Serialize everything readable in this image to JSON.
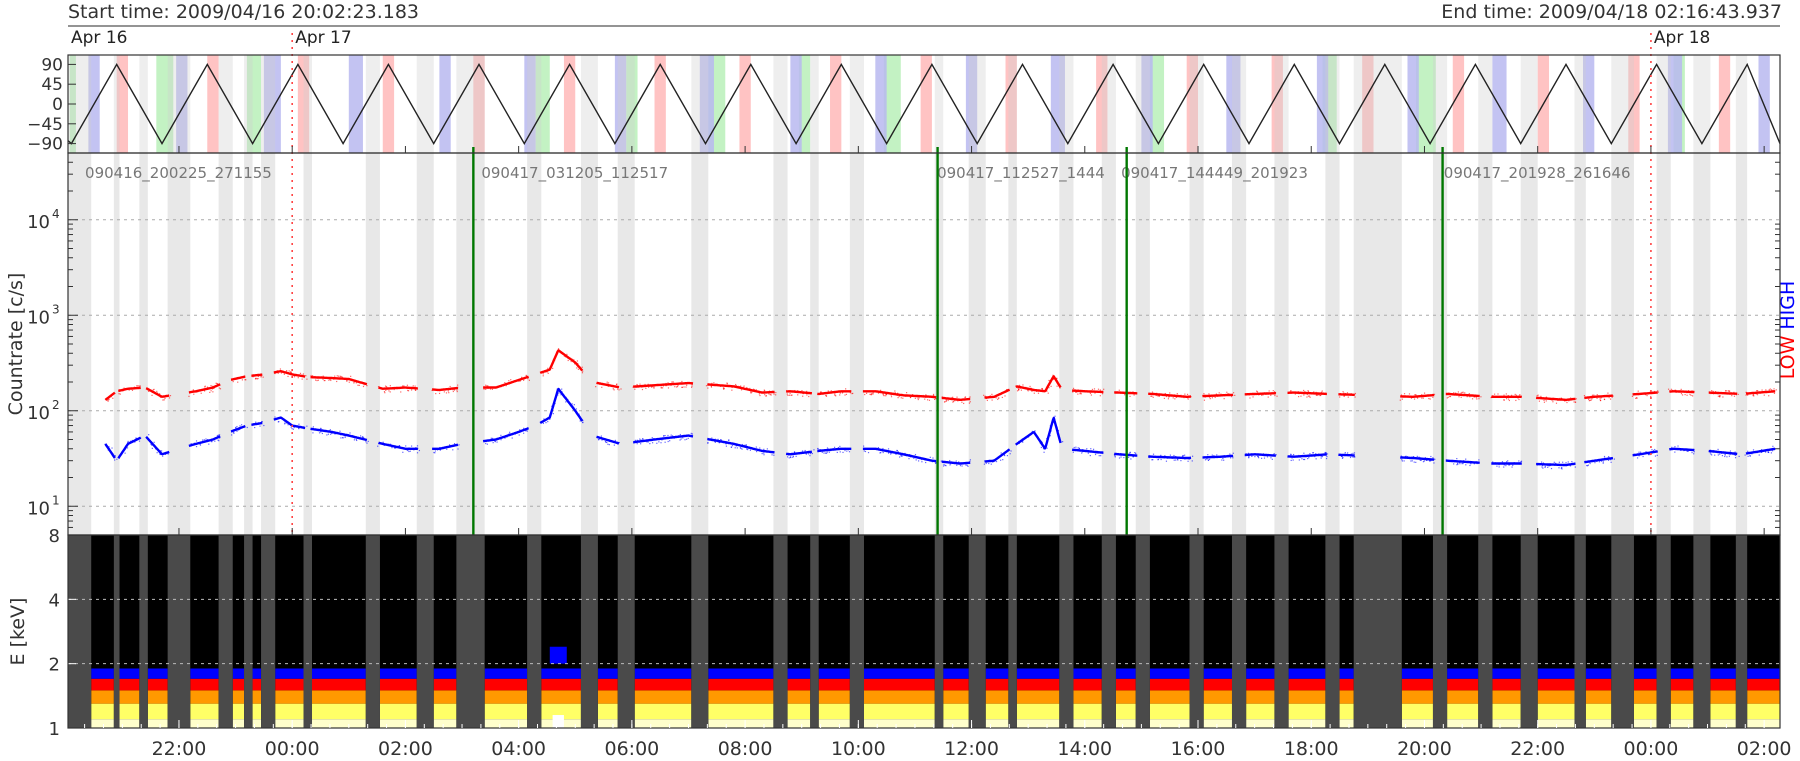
{
  "header": {
    "start_label": "Start time: 2009/04/16 20:02:23.183",
    "end_label": "End time: 2009/04/18 02:16:43.937"
  },
  "chart_data": [
    {
      "type": "line",
      "panel": "orbit-angle",
      "x_range_hours": [
        -3.96,
        26.28
      ],
      "x_unit": "hours relative to 2009/04/17 00:00",
      "ylim": [
        -100,
        100
      ],
      "yticks": [
        "90",
        "45",
        "0",
        "-45",
        "-90"
      ],
      "day_labels": [
        {
          "label": "Apr 16",
          "x": -3.96
        },
        {
          "label": "Apr 17",
          "x": 0.0
        },
        {
          "label": "Apr 18",
          "x": 24.0
        }
      ],
      "wave": {
        "period_hours": 1.6,
        "first_min": -3.9,
        "min": -90,
        "max": 90
      },
      "green_bands": [
        [
          -3.93,
          -3.82
        ],
        [
          -2.4,
          -2.1
        ],
        [
          -0.8,
          -0.55
        ],
        [
          4.3,
          4.55
        ],
        [
          5.9,
          6.1
        ],
        [
          7.35,
          7.65
        ],
        [
          8.95,
          9.15
        ],
        [
          10.45,
          10.75
        ],
        [
          15.15,
          15.4
        ],
        [
          18.2,
          18.45
        ],
        [
          19.85,
          20.2
        ],
        [
          24.4,
          24.6
        ]
      ],
      "red_bands": [
        [
          -3.1,
          -2.9
        ],
        [
          -1.5,
          -1.3
        ],
        [
          0.1,
          0.3
        ],
        [
          1.6,
          1.8
        ],
        [
          3.2,
          3.4
        ],
        [
          4.8,
          5.0
        ],
        [
          6.4,
          6.6
        ],
        [
          7.9,
          8.1
        ],
        [
          9.5,
          9.7
        ],
        [
          11.1,
          11.3
        ],
        [
          12.6,
          12.8
        ],
        [
          14.2,
          14.4
        ],
        [
          15.8,
          16.0
        ],
        [
          17.3,
          17.5
        ],
        [
          18.9,
          19.1
        ],
        [
          20.5,
          20.7
        ],
        [
          22.0,
          22.2
        ],
        [
          23.6,
          23.8
        ],
        [
          25.2,
          25.4
        ]
      ],
      "blue_bands": [
        [
          -3.6,
          -3.4
        ],
        [
          -2.05,
          -1.85
        ],
        [
          -0.5,
          -0.2
        ],
        [
          1.0,
          1.25
        ],
        [
          2.6,
          2.8
        ],
        [
          4.1,
          4.3
        ],
        [
          5.7,
          5.9
        ],
        [
          7.2,
          7.45
        ],
        [
          8.8,
          9.0
        ],
        [
          10.3,
          10.5
        ],
        [
          11.9,
          12.1
        ],
        [
          13.4,
          13.65
        ],
        [
          15.0,
          15.2
        ],
        [
          16.5,
          16.75
        ],
        [
          18.1,
          18.3
        ],
        [
          19.7,
          19.9
        ],
        [
          21.2,
          21.45
        ],
        [
          22.8,
          23.0
        ],
        [
          24.3,
          24.55
        ],
        [
          25.9,
          26.1
        ]
      ]
    },
    {
      "type": "scatter",
      "panel": "countrate",
      "ylabel": "Countrate [c/s]",
      "yscale": "log",
      "ylim": [
        5,
        50000
      ],
      "ytick_labels": [
        "10",
        "10",
        "10",
        "10"
      ],
      "ytick_exponents": [
        "1",
        "2",
        "3",
        "4"
      ],
      "ytick_values": [
        10,
        100,
        1000,
        10000
      ],
      "grid": true,
      "legend": {
        "position": "right",
        "entries": [
          {
            "name": "LOW",
            "color": "#ff0000"
          },
          {
            "name": "HIGH",
            "color": "#0000ff"
          }
        ]
      },
      "file_labels": [
        {
          "text": "090416_200225_271155",
          "x": -3.8
        },
        {
          "text": "090417_031205_112517",
          "x": 3.2
        },
        {
          "text": "090417_112527_1444",
          "x": 11.25
        },
        {
          "text": "090417_144449_201923",
          "x": 14.5
        },
        {
          "text": "090417_201928_261646",
          "x": 20.2
        }
      ],
      "file_boundaries": [
        3.2,
        11.4,
        14.74,
        20.32
      ],
      "midnight_markers": [
        0.0,
        24.0
      ],
      "gray_gaps": [
        [
          -3.96,
          -3.55
        ],
        [
          -3.15,
          -3.05
        ],
        [
          -2.7,
          -2.55
        ],
        [
          -2.2,
          -1.8
        ],
        [
          -1.3,
          -1.05
        ],
        [
          -0.85,
          -0.7
        ],
        [
          -0.55,
          -0.3
        ],
        [
          0.2,
          0.35
        ],
        [
          1.3,
          1.55
        ],
        [
          2.2,
          2.5
        ],
        [
          2.9,
          3.4
        ],
        [
          4.15,
          4.4
        ],
        [
          5.1,
          5.4
        ],
        [
          5.75,
          6.05
        ],
        [
          7.05,
          7.35
        ],
        [
          8.5,
          8.75
        ],
        [
          9.15,
          9.3
        ],
        [
          9.85,
          10.1
        ],
        [
          11.35,
          11.5
        ],
        [
          11.95,
          12.25
        ],
        [
          12.65,
          12.8
        ],
        [
          13.55,
          13.8
        ],
        [
          14.3,
          14.55
        ],
        [
          14.9,
          15.15
        ],
        [
          15.85,
          16.1
        ],
        [
          16.6,
          16.85
        ],
        [
          17.35,
          17.6
        ],
        [
          18.25,
          18.5
        ],
        [
          18.75,
          19.6
        ],
        [
          20.15,
          20.4
        ],
        [
          20.95,
          21.2
        ],
        [
          21.7,
          22.0
        ],
        [
          22.65,
          22.85
        ],
        [
          23.3,
          23.7
        ],
        [
          24.1,
          24.35
        ],
        [
          24.75,
          25.05
        ],
        [
          25.5,
          25.7
        ]
      ],
      "series": [
        {
          "name": "LOW",
          "color": "#ff0000",
          "x": [
            -3.3,
            -3.1,
            -2.9,
            -2.6,
            -2.3,
            -2.0,
            -1.7,
            -1.4,
            -1.1,
            -0.8,
            -0.5,
            -0.2,
            0.0,
            0.3,
            0.7,
            1.0,
            1.6,
            2.0,
            2.6,
            3.0,
            3.6,
            4.0,
            4.3,
            4.55,
            4.7,
            5.0,
            5.3,
            5.8,
            6.4,
            7.0,
            7.8,
            8.3,
            8.8,
            9.3,
            9.7,
            10.3,
            10.8,
            11.3,
            11.8,
            12.4,
            12.8,
            13.1,
            13.3,
            13.45,
            13.6,
            14.0,
            14.6,
            15.2,
            15.8,
            16.4,
            17.0,
            17.7,
            18.3,
            19.8,
            20.4,
            21.2,
            21.7,
            22.5,
            23.0,
            23.8,
            24.4,
            25.0,
            25.6,
            26.2
          ],
          "y": [
            130,
            160,
            170,
            175,
            140,
            150,
            160,
            175,
            210,
            230,
            240,
            260,
            240,
            225,
            220,
            215,
            170,
            175,
            165,
            175,
            175,
            210,
            240,
            270,
            430,
            320,
            200,
            175,
            185,
            195,
            180,
            155,
            160,
            150,
            160,
            160,
            145,
            140,
            130,
            140,
            180,
            165,
            160,
            230,
            165,
            160,
            155,
            150,
            140,
            145,
            150,
            155,
            150,
            140,
            150,
            140,
            140,
            130,
            140,
            150,
            160,
            155,
            150,
            160
          ]
        },
        {
          "name": "HIGH",
          "color": "#0000ff",
          "x": [
            -3.3,
            -3.1,
            -2.9,
            -2.6,
            -2.3,
            -2.0,
            -1.7,
            -1.4,
            -1.1,
            -0.8,
            -0.5,
            -0.2,
            0.0,
            0.3,
            0.7,
            1.0,
            1.6,
            2.0,
            2.6,
            3.0,
            3.6,
            4.0,
            4.3,
            4.55,
            4.7,
            5.0,
            5.3,
            5.8,
            6.4,
            7.0,
            7.8,
            8.3,
            8.8,
            9.3,
            9.7,
            10.3,
            10.8,
            11.3,
            11.8,
            12.4,
            12.8,
            13.1,
            13.3,
            13.45,
            13.6,
            14.0,
            14.6,
            15.2,
            15.8,
            16.4,
            17.0,
            17.7,
            18.3,
            19.8,
            20.4,
            21.2,
            21.7,
            22.5,
            23.0,
            23.8,
            24.4,
            25.0,
            25.6,
            26.2
          ],
          "y": [
            45,
            30,
            45,
            55,
            35,
            40,
            45,
            50,
            60,
            70,
            75,
            85,
            70,
            65,
            60,
            55,
            45,
            40,
            40,
            45,
            50,
            60,
            70,
            85,
            170,
            100,
            55,
            45,
            50,
            55,
            45,
            38,
            35,
            38,
            40,
            40,
            35,
            30,
            28,
            30,
            45,
            60,
            40,
            85,
            40,
            38,
            35,
            33,
            32,
            33,
            35,
            33,
            35,
            32,
            30,
            28,
            28,
            27,
            30,
            35,
            40,
            38,
            35,
            40
          ]
        }
      ]
    },
    {
      "type": "heatmap",
      "panel": "spectrogram",
      "ylabel": "E [keV]",
      "yscale": "log",
      "ylim": [
        1,
        8
      ],
      "yticks": [
        "1",
        "2",
        "4",
        "8"
      ],
      "ytick_values": [
        1,
        2,
        4,
        8
      ],
      "colormap": [
        "#000000",
        "#0000ff",
        "#ff0000",
        "#ff9900",
        "#ffff66",
        "#ffffcc"
      ],
      "band_edges_keV": [
        1.1,
        1.3,
        1.5,
        1.7,
        1.9,
        2.0
      ],
      "x_tick_labels": [
        "22:00",
        "00:00",
        "02:00",
        "04:00",
        "06:00",
        "08:00",
        "10:00",
        "12:00",
        "14:00",
        "16:00",
        "18:00",
        "20:00",
        "22:00",
        "00:00",
        "02:00"
      ],
      "x_tick_hours": [
        -2,
        0,
        2,
        4,
        6,
        8,
        10,
        12,
        14,
        16,
        18,
        20,
        22,
        24,
        26
      ]
    }
  ]
}
